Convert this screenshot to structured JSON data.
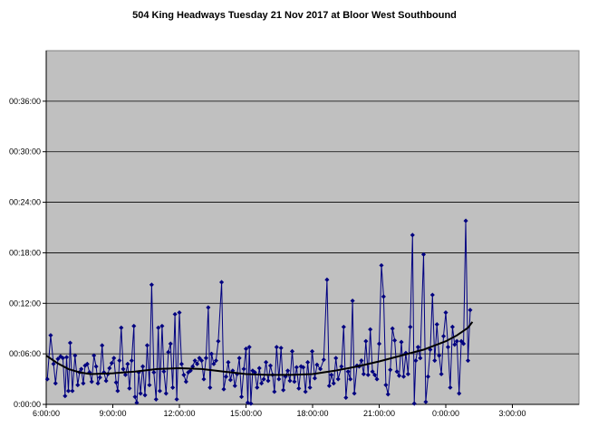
{
  "chart_data": {
    "type": "line",
    "title": "504 King Headways Tuesday 21 Nov 2017 at Bloor West Southbound",
    "xlabel": "",
    "ylabel": "",
    "x_unit": "time of day (hours)",
    "y_unit": "headway (minutes)",
    "xlim": [
      6,
      30
    ],
    "ylim": [
      0,
      42
    ],
    "x_ticks": [
      "6:00:00",
      "9:00:00",
      "12:00:00",
      "15:00:00",
      "18:00:00",
      "21:00:00",
      "0:00:00",
      "3:00:00"
    ],
    "y_ticks": [
      "0:00:00",
      "00:06:00",
      "00:12:00",
      "00:18:00",
      "00:24:00",
      "00:30:00",
      "00:36:00"
    ],
    "grid": "horizontal",
    "legend": "none",
    "colors": {
      "plot_bg": "#c0c0c0",
      "series": "#000080",
      "trend": "#000000",
      "grid": "#000000"
    },
    "series": [
      {
        "kind": "observed",
        "points": [
          [
            6.05,
            3.0
          ],
          [
            6.2,
            8.2
          ],
          [
            6.33,
            4.8
          ],
          [
            6.42,
            2.5
          ],
          [
            6.53,
            5.4
          ],
          [
            6.65,
            5.7
          ],
          [
            6.75,
            5.5
          ],
          [
            6.85,
            1.0
          ],
          [
            6.92,
            5.6
          ],
          [
            7.0,
            1.6
          ],
          [
            7.08,
            7.3
          ],
          [
            7.18,
            1.6
          ],
          [
            7.3,
            5.8
          ],
          [
            7.42,
            2.3
          ],
          [
            7.5,
            3.8
          ],
          [
            7.58,
            4.2
          ],
          [
            7.67,
            2.5
          ],
          [
            7.75,
            4.6
          ],
          [
            7.85,
            4.8
          ],
          [
            7.95,
            3.8
          ],
          [
            8.05,
            2.7
          ],
          [
            8.15,
            5.8
          ],
          [
            8.25,
            4.5
          ],
          [
            8.33,
            2.5
          ],
          [
            8.42,
            3.2
          ],
          [
            8.52,
            7.0
          ],
          [
            8.6,
            3.8
          ],
          [
            8.7,
            2.8
          ],
          [
            8.78,
            3.6
          ],
          [
            8.85,
            4.3
          ],
          [
            8.95,
            4.9
          ],
          [
            9.05,
            5.5
          ],
          [
            9.15,
            2.6
          ],
          [
            9.22,
            1.6
          ],
          [
            9.3,
            5.2
          ],
          [
            9.38,
            9.1
          ],
          [
            9.47,
            4.2
          ],
          [
            9.57,
            3.5
          ],
          [
            9.67,
            4.8
          ],
          [
            9.75,
            1.9
          ],
          [
            9.85,
            5.2
          ],
          [
            9.95,
            9.3
          ],
          [
            10.0,
            0.9
          ],
          [
            10.08,
            0.2
          ],
          [
            10.17,
            3.8
          ],
          [
            10.25,
            1.3
          ],
          [
            10.35,
            4.5
          ],
          [
            10.45,
            1.1
          ],
          [
            10.55,
            7.0
          ],
          [
            10.65,
            2.3
          ],
          [
            10.75,
            14.2
          ],
          [
            10.85,
            3.8
          ],
          [
            10.95,
            0.6
          ],
          [
            11.05,
            9.1
          ],
          [
            11.12,
            1.6
          ],
          [
            11.22,
            9.3
          ],
          [
            11.3,
            3.9
          ],
          [
            11.4,
            1.3
          ],
          [
            11.5,
            6.2
          ],
          [
            11.6,
            7.2
          ],
          [
            11.7,
            2.0
          ],
          [
            11.8,
            10.7
          ],
          [
            11.88,
            0.6
          ],
          [
            12.0,
            10.9
          ],
          [
            12.1,
            4.8
          ],
          [
            12.2,
            3.5
          ],
          [
            12.3,
            2.7
          ],
          [
            12.4,
            3.8
          ],
          [
            12.5,
            4.0
          ],
          [
            12.6,
            4.5
          ],
          [
            12.7,
            5.2
          ],
          [
            12.8,
            4.8
          ],
          [
            12.9,
            5.5
          ],
          [
            13.0,
            5.2
          ],
          [
            13.1,
            3.0
          ],
          [
            13.2,
            5.5
          ],
          [
            13.3,
            11.5
          ],
          [
            13.38,
            2.0
          ],
          [
            13.45,
            6.0
          ],
          [
            13.55,
            4.8
          ],
          [
            13.65,
            5.2
          ],
          [
            13.75,
            7.5
          ],
          [
            13.9,
            14.5
          ],
          [
            14.0,
            1.8
          ],
          [
            14.1,
            3.3
          ],
          [
            14.2,
            5.0
          ],
          [
            14.3,
            2.9
          ],
          [
            14.4,
            4.0
          ],
          [
            14.5,
            2.2
          ],
          [
            14.6,
            3.6
          ],
          [
            14.7,
            5.5
          ],
          [
            14.8,
            0.9
          ],
          [
            14.9,
            4.2
          ],
          [
            15.0,
            6.6
          ],
          [
            15.08,
            0.2
          ],
          [
            15.15,
            6.8
          ],
          [
            15.22,
            0.1
          ],
          [
            15.3,
            4.0
          ],
          [
            15.4,
            3.8
          ],
          [
            15.5,
            2.0
          ],
          [
            15.6,
            4.3
          ],
          [
            15.7,
            2.5
          ],
          [
            15.8,
            3.0
          ],
          [
            15.9,
            5.0
          ],
          [
            16.0,
            2.8
          ],
          [
            16.1,
            4.6
          ],
          [
            16.2,
            3.5
          ],
          [
            16.28,
            1.5
          ],
          [
            16.38,
            6.8
          ],
          [
            16.48,
            3.0
          ],
          [
            16.58,
            6.7
          ],
          [
            16.68,
            1.7
          ],
          [
            16.78,
            3.3
          ],
          [
            16.88,
            4.0
          ],
          [
            16.98,
            2.8
          ],
          [
            17.08,
            6.3
          ],
          [
            17.18,
            2.7
          ],
          [
            17.28,
            4.4
          ],
          [
            17.38,
            1.9
          ],
          [
            17.48,
            4.5
          ],
          [
            17.58,
            4.4
          ],
          [
            17.68,
            1.5
          ],
          [
            17.78,
            5.0
          ],
          [
            17.88,
            2.0
          ],
          [
            17.98,
            6.3
          ],
          [
            18.1,
            3.1
          ],
          [
            18.2,
            4.7
          ],
          [
            18.35,
            4.2
          ],
          [
            18.5,
            5.3
          ],
          [
            18.65,
            14.8
          ],
          [
            18.75,
            2.2
          ],
          [
            18.85,
            3.5
          ],
          [
            18.95,
            2.5
          ],
          [
            19.05,
            5.5
          ],
          [
            19.15,
            3.0
          ],
          [
            19.3,
            4.5
          ],
          [
            19.4,
            9.2
          ],
          [
            19.5,
            0.8
          ],
          [
            19.6,
            3.9
          ],
          [
            19.7,
            3.0
          ],
          [
            19.8,
            12.3
          ],
          [
            19.88,
            1.3
          ],
          [
            20.0,
            4.6
          ],
          [
            20.1,
            4.5
          ],
          [
            20.2,
            5.2
          ],
          [
            20.3,
            3.6
          ],
          [
            20.4,
            7.5
          ],
          [
            20.5,
            3.5
          ],
          [
            20.6,
            8.9
          ],
          [
            20.7,
            3.9
          ],
          [
            20.8,
            3.5
          ],
          [
            20.9,
            3.0
          ],
          [
            21.0,
            7.2
          ],
          [
            21.1,
            16.5
          ],
          [
            21.2,
            12.8
          ],
          [
            21.3,
            2.3
          ],
          [
            21.4,
            1.2
          ],
          [
            21.5,
            4.1
          ],
          [
            21.6,
            9.0
          ],
          [
            21.7,
            7.6
          ],
          [
            21.8,
            3.9
          ],
          [
            21.9,
            3.4
          ],
          [
            22.0,
            7.4
          ],
          [
            22.1,
            3.3
          ],
          [
            22.2,
            6.1
          ],
          [
            22.3,
            3.6
          ],
          [
            22.4,
            9.2
          ],
          [
            22.5,
            20.1
          ],
          [
            22.58,
            0.1
          ],
          [
            22.65,
            5.2
          ],
          [
            22.75,
            6.8
          ],
          [
            22.85,
            5.5
          ],
          [
            23.0,
            17.8
          ],
          [
            23.1,
            0.3
          ],
          [
            23.2,
            3.3
          ],
          [
            23.3,
            6.5
          ],
          [
            23.4,
            13.0
          ],
          [
            23.5,
            5.2
          ],
          [
            23.6,
            9.5
          ],
          [
            23.7,
            5.8
          ],
          [
            23.8,
            3.6
          ],
          [
            23.9,
            8.1
          ],
          [
            24.0,
            10.9
          ],
          [
            24.1,
            6.8
          ],
          [
            24.2,
            2.0
          ],
          [
            24.3,
            9.2
          ],
          [
            24.4,
            7.1
          ],
          [
            24.5,
            7.5
          ],
          [
            24.6,
            1.3
          ],
          [
            24.7,
            7.5
          ],
          [
            24.8,
            7.2
          ],
          [
            24.9,
            21.8
          ],
          [
            25.0,
            5.2
          ],
          [
            25.1,
            11.2
          ]
        ]
      },
      {
        "kind": "trend",
        "points": [
          [
            6.0,
            5.8
          ],
          [
            6.5,
            4.9
          ],
          [
            7.0,
            4.2
          ],
          [
            7.5,
            3.8
          ],
          [
            8.0,
            3.6
          ],
          [
            9.0,
            3.7
          ],
          [
            10.0,
            3.9
          ],
          [
            11.0,
            4.2
          ],
          [
            12.0,
            4.3
          ],
          [
            13.0,
            4.2
          ],
          [
            14.0,
            3.9
          ],
          [
            15.0,
            3.6
          ],
          [
            16.0,
            3.5
          ],
          [
            17.0,
            3.5
          ],
          [
            18.0,
            3.6
          ],
          [
            19.0,
            4.0
          ],
          [
            20.0,
            4.5
          ],
          [
            21.0,
            5.1
          ],
          [
            22.0,
            5.8
          ],
          [
            23.0,
            6.5
          ],
          [
            24.0,
            7.5
          ],
          [
            24.5,
            8.2
          ],
          [
            25.0,
            9.1
          ],
          [
            25.2,
            9.8
          ]
        ]
      }
    ]
  }
}
